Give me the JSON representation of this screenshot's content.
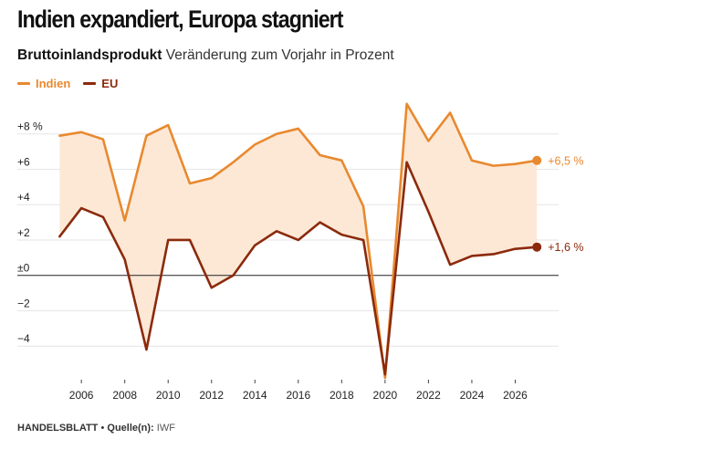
{
  "header": {
    "title": "Indien expandiert, Europa stagniert",
    "subtitle_bold": "Bruttoinlandsprodukt",
    "subtitle_rest": "Veränderung zum Vorjahr in Prozent"
  },
  "footer": {
    "brand": "HANDELSBLATT",
    "separator": "•",
    "source_label": "Quelle(n):",
    "source": "IWF"
  },
  "colors": {
    "india": "#e8892f",
    "eu": "#8b2a0c",
    "band": "#fde8d6",
    "grid": "#e6e6e6",
    "zero": "#222222"
  },
  "chart_data": {
    "type": "line",
    "title": "Indien expandiert, Europa stagniert",
    "ylabel": "Veränderung zum Vorjahr in Prozent",
    "xlabel": "",
    "x": [
      2005,
      2006,
      2007,
      2008,
      2009,
      2010,
      2011,
      2012,
      2013,
      2014,
      2015,
      2016,
      2017,
      2018,
      2019,
      2020,
      2021,
      2022,
      2023,
      2024,
      2025,
      2026,
      2027
    ],
    "series": [
      {
        "name": "Indien",
        "values": [
          7.9,
          8.1,
          7.7,
          3.1,
          7.9,
          8.5,
          5.2,
          5.5,
          6.4,
          7.4,
          8.0,
          8.3,
          6.8,
          6.5,
          3.9,
          -5.8,
          9.7,
          7.6,
          9.2,
          6.5,
          6.2,
          6.3,
          6.5
        ]
      },
      {
        "name": "EU",
        "values": [
          2.2,
          3.8,
          3.3,
          0.9,
          -4.2,
          2.0,
          2.0,
          -0.7,
          0.0,
          1.7,
          2.5,
          2.0,
          3.0,
          2.3,
          2.0,
          -5.6,
          6.4,
          3.6,
          0.6,
          1.1,
          1.2,
          1.5,
          1.6
        ]
      }
    ],
    "end_labels": {
      "india": "+6,5 %",
      "eu": "+1,6 %"
    },
    "ylim": [
      -5.9,
      10.0
    ],
    "xlim": [
      2004.9,
      2028.0
    ],
    "yticks": [
      {
        "value": 8,
        "label": "+8 %"
      },
      {
        "value": 6,
        "label": "+6"
      },
      {
        "value": 4,
        "label": "+4"
      },
      {
        "value": 2,
        "label": "+2"
      },
      {
        "value": 0,
        "label": "±0"
      },
      {
        "value": -2,
        "label": "−2"
      },
      {
        "value": -4,
        "label": "−4"
      }
    ],
    "xticks": [
      {
        "value": 2006,
        "label": "2006"
      },
      {
        "value": 2008,
        "label": "2008"
      },
      {
        "value": 2010,
        "label": "2010"
      },
      {
        "value": 2012,
        "label": "2012"
      },
      {
        "value": 2014,
        "label": "2014"
      },
      {
        "value": 2016,
        "label": "2016"
      },
      {
        "value": 2018,
        "label": "2018"
      },
      {
        "value": 2020,
        "label": "2020"
      },
      {
        "value": 2022,
        "label": "2022"
      },
      {
        "value": 2024,
        "label": "2024"
      },
      {
        "value": 2026,
        "label": "2026"
      }
    ],
    "grid": true,
    "legend": "top-left"
  }
}
